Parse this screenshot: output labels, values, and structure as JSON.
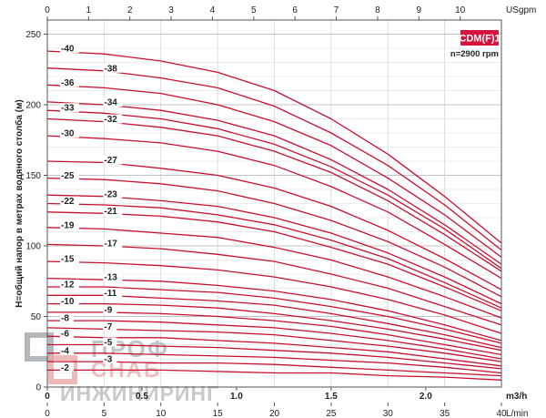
{
  "chart_data": {
    "type": "line",
    "badge": "CDM(F)1",
    "speed": "n=2900 rpm",
    "ylabel": "Н=общий напор в метрах водяного столба (м)",
    "ylim": [
      0,
      260
    ],
    "y_ticks": [
      "0",
      "50",
      "100",
      "150",
      "200",
      "250"
    ],
    "x_ranges": {
      "usgpm": [
        0,
        11
      ],
      "m3h": [
        0,
        2.4
      ],
      "lmin": [
        0,
        40
      ]
    },
    "top_axis": {
      "unit": "USgpm",
      "ticks": [
        "0",
        "1",
        "2",
        "3",
        "4",
        "5",
        "6",
        "7",
        "8",
        "9",
        "10"
      ]
    },
    "bottom_axis_m3h": {
      "unit": "m3/h",
      "ticks": [
        "0",
        "0.5",
        "1.0",
        "1.5",
        "2.0"
      ]
    },
    "bottom_axis_lmin": {
      "unit": "L/min",
      "ticks": [
        "0",
        "5",
        "10",
        "15",
        "20",
        "25",
        "30",
        "35",
        "40"
      ]
    },
    "grid": true,
    "curve_x_lmin": [
      0,
      5,
      10,
      15,
      20,
      25,
      30,
      35,
      40
    ],
    "series": [
      {
        "name": "-40",
        "values": [
          238,
          236,
          231,
          223,
          210,
          190,
          165,
          135,
          102
        ]
      },
      {
        "name": "-38",
        "values": [
          226,
          224,
          219,
          212,
          199,
          180,
          157,
          129,
          97
        ]
      },
      {
        "name": "-36",
        "values": [
          214,
          212,
          208,
          200,
          188,
          171,
          148,
          122,
          92
        ]
      },
      {
        "name": "-34",
        "values": [
          202,
          200,
          196,
          189,
          178,
          161,
          140,
          115,
          87
        ]
      },
      {
        "name": "-33",
        "values": [
          196,
          194,
          190,
          183,
          172,
          156,
          136,
          112,
          84
        ]
      },
      {
        "name": "-32",
        "values": [
          190,
          188,
          184,
          178,
          167,
          152,
          132,
          108,
          82
        ]
      },
      {
        "name": "-30",
        "values": [
          178,
          176,
          173,
          167,
          157,
          142,
          124,
          101,
          77
        ]
      },
      {
        "name": "-27",
        "values": [
          160,
          159,
          155,
          150,
          141,
          128,
          111,
          91,
          69
        ]
      },
      {
        "name": "-25",
        "values": [
          148,
          147,
          144,
          139,
          130,
          118,
          103,
          85,
          64
        ]
      },
      {
        "name": "-23",
        "values": [
          136,
          135,
          132,
          128,
          120,
          109,
          95,
          78,
          59
        ]
      },
      {
        "name": "-22",
        "values": [
          130,
          129,
          127,
          122,
          115,
          104,
          91,
          74,
          56
        ]
      },
      {
        "name": "-21",
        "values": [
          124,
          123,
          121,
          117,
          110,
          99,
          87,
          71,
          54
        ]
      },
      {
        "name": "-19",
        "values": [
          113,
          112,
          109,
          106,
          99,
          90,
          78,
          64,
          49
        ]
      },
      {
        "name": "-17",
        "values": [
          101,
          100,
          98,
          94,
          89,
          80,
          70,
          57,
          44
        ]
      },
      {
        "name": "-15",
        "values": [
          89,
          88,
          86,
          83,
          78,
          71,
          62,
          51,
          38
        ]
      },
      {
        "name": "-13",
        "values": [
          77,
          76,
          75,
          72,
          68,
          62,
          54,
          44,
          33
        ]
      },
      {
        "name": "-12",
        "values": [
          71,
          71,
          69,
          67,
          63,
          57,
          50,
          41,
          31
        ]
      },
      {
        "name": "-11",
        "values": [
          65,
          65,
          63,
          61,
          58,
          52,
          45,
          37,
          28
        ]
      },
      {
        "name": "-10",
        "values": [
          59,
          59,
          58,
          56,
          52,
          47,
          41,
          34,
          26
        ]
      },
      {
        "name": "-9",
        "values": [
          53,
          53,
          52,
          50,
          47,
          43,
          37,
          30,
          23
        ]
      },
      {
        "name": "-8",
        "values": [
          47,
          47,
          46,
          44,
          42,
          38,
          33,
          27,
          20
        ]
      },
      {
        "name": "-7",
        "values": [
          42,
          41,
          40,
          39,
          37,
          33,
          29,
          24,
          18
        ]
      },
      {
        "name": "-6",
        "values": [
          36,
          35,
          35,
          33,
          31,
          28,
          25,
          20,
          15
        ]
      },
      {
        "name": "-5",
        "values": [
          30,
          30,
          29,
          28,
          26,
          24,
          21,
          17,
          13
        ]
      },
      {
        "name": "-4",
        "values": [
          24,
          24,
          23,
          22,
          21,
          19,
          17,
          14,
          10
        ]
      },
      {
        "name": "-3",
        "values": [
          18,
          18,
          17,
          17,
          16,
          14,
          12,
          10,
          8
        ]
      },
      {
        "name": "-2",
        "values": [
          12,
          12,
          12,
          11,
          10,
          10,
          8,
          7,
          5
        ]
      }
    ],
    "label_positions_lmin": {
      "-40": 0,
      "-38": 5,
      "-36": 0,
      "-34": 5,
      "-33": 0,
      "-32": 5,
      "-30": 0,
      "-27": 5,
      "-25": 0,
      "-23": 5,
      "-22": 0,
      "-21": 5,
      "-19": 0,
      "-17": 5,
      "-15": 0,
      "-13": 5,
      "-12": 0,
      "-11": 5,
      "-10": 0,
      "-9": 5,
      "-8": 0,
      "-7": 5,
      "-6": 0,
      "-5": 5,
      "-4": 0,
      "-3": 5,
      "-2": 0
    }
  },
  "watermark": {
    "line1": "ПРОФ",
    "line2": "СНАБ",
    "line3": "ИНЖИНИРИНГ"
  },
  "colors": {
    "curve": "#c8102e",
    "badge": "#d4143c",
    "grid": "#b5b5b5",
    "watermark": "#9aa0a6"
  }
}
